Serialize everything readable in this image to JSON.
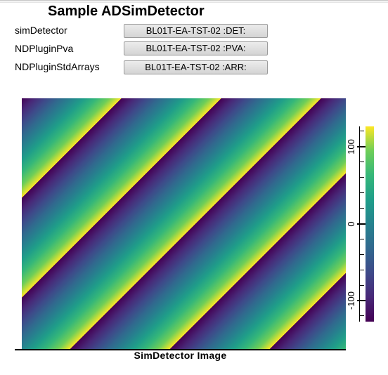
{
  "page": {
    "title": "Sample ADSimDetector"
  },
  "controls": [
    {
      "label": "simDetector",
      "button": "BL01T-EA-TST-02 :DET:"
    },
    {
      "label": "NDPluginPva",
      "button": "BL01T-EA-TST-02 :PVA:"
    },
    {
      "label": "NDPluginStdArrays",
      "button": "BL01T-EA-TST-02 :ARR:"
    }
  ],
  "image": {
    "caption": "SimDetector Image",
    "colormap": "viridis",
    "pattern": "diagonal-sawtooth-ramp",
    "value_range": [
      -128,
      127
    ],
    "colorbar": {
      "tick_labels": [
        "100",
        "0",
        "-100"
      ]
    }
  },
  "colors": {
    "viridis_low": "#440154",
    "viridis_mid": "#21918c",
    "viridis_high": "#fde725",
    "button_border": "#9a9a9a"
  }
}
